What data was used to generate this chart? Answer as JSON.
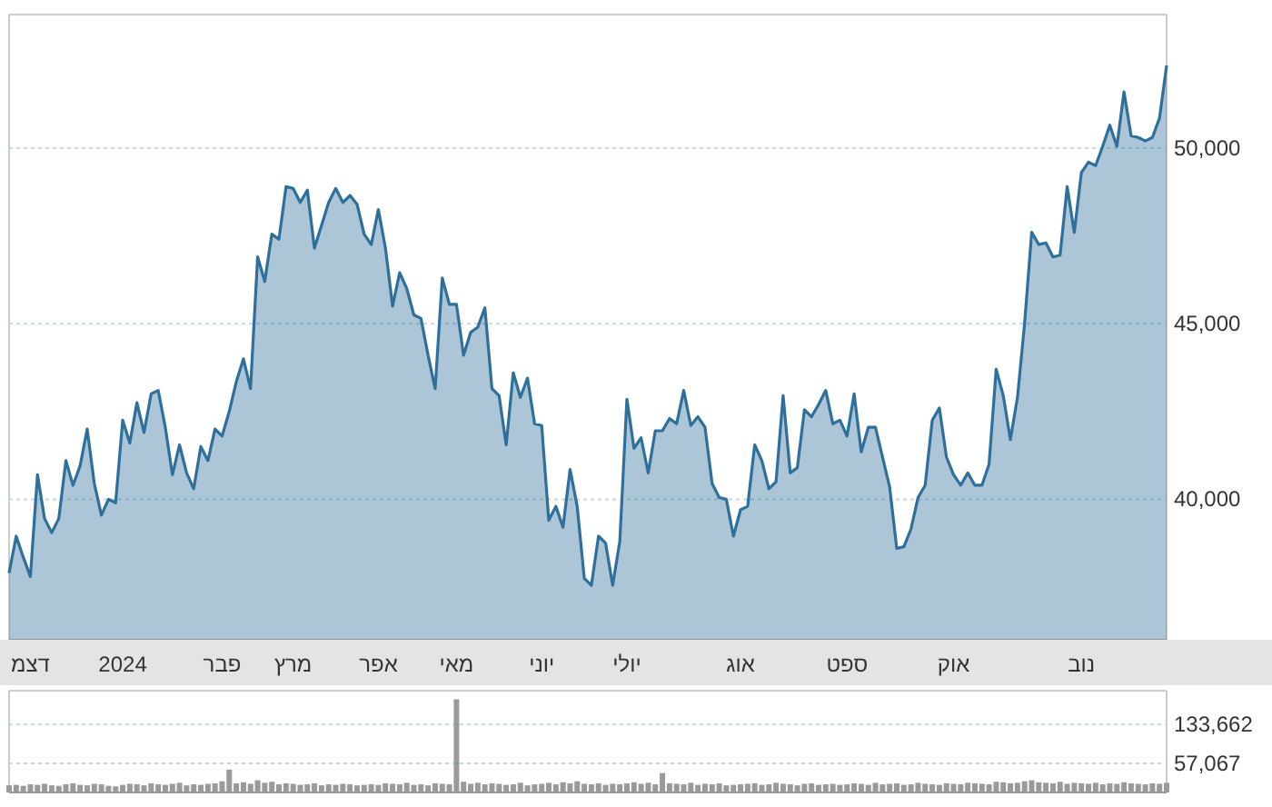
{
  "chart_data": [
    {
      "type": "area",
      "color": "#2f6f9c",
      "categories": [
        null,
        null,
        null,
        "דצמ",
        null,
        null,
        null,
        null,
        null,
        null,
        null,
        null,
        null,
        null,
        null,
        null,
        "2024",
        null,
        null,
        null,
        null,
        null,
        null,
        null,
        null,
        null,
        null,
        null,
        null,
        null,
        "פבר",
        null,
        null,
        null,
        null,
        null,
        null,
        null,
        null,
        null,
        "מרץ",
        null,
        null,
        null,
        null,
        null,
        null,
        null,
        null,
        null,
        null,
        null,
        "אפר",
        null,
        null,
        null,
        null,
        null,
        null,
        null,
        null,
        null,
        null,
        "מאי",
        null,
        null,
        null,
        null,
        null,
        null,
        null,
        null,
        null,
        null,
        null,
        "יוני",
        null,
        null,
        null,
        null,
        null,
        null,
        null,
        null,
        null,
        null,
        null,
        "יולי",
        null,
        null,
        null,
        null,
        null,
        null,
        null,
        null,
        null,
        null,
        null,
        null,
        null,
        null,
        null,
        "אוג",
        null,
        null,
        null,
        null,
        null,
        null,
        null,
        null,
        null,
        null,
        null,
        null,
        null,
        null,
        "ספט",
        null,
        null,
        null,
        null,
        null,
        null,
        null,
        null,
        null,
        null,
        null,
        null,
        null,
        null,
        "אוק",
        null,
        null,
        null,
        null,
        null,
        null,
        null,
        null,
        null,
        null,
        null,
        null,
        null,
        null,
        null,
        null,
        null,
        "נוב",
        null,
        null,
        null,
        null,
        null,
        null,
        null,
        null,
        null,
        null,
        null,
        null
      ],
      "values": [
        37900,
        38950,
        38350,
        37800,
        40700,
        39450,
        39050,
        39450,
        41100,
        40400,
        40950,
        42000,
        40450,
        39550,
        40000,
        39900,
        42250,
        41600,
        42750,
        41900,
        43000,
        43100,
        42050,
        40700,
        41550,
        40750,
        40300,
        41500,
        41100,
        42000,
        41800,
        42500,
        43350,
        44000,
        43150,
        46900,
        46200,
        47550,
        47400,
        48900,
        48850,
        48450,
        48800,
        47150,
        47800,
        48450,
        48850,
        48450,
        48650,
        48400,
        47550,
        47250,
        48250,
        47150,
        45500,
        46450,
        46000,
        45250,
        45150,
        44100,
        43150,
        46300,
        45550,
        45550,
        44100,
        44750,
        44900,
        45450,
        43150,
        42950,
        41550,
        43600,
        42900,
        43450,
        42150,
        42100,
        39400,
        39800,
        39200,
        40850,
        39800,
        37750,
        37550,
        38950,
        38750,
        37550,
        38800,
        42850,
        41450,
        41750,
        40750,
        41950,
        41950,
        42300,
        42150,
        43100,
        42100,
        42350,
        42050,
        40450,
        40050,
        40000,
        38950,
        39700,
        39800,
        41550,
        41100,
        40300,
        40500,
        42950,
        40750,
        40900,
        42550,
        42350,
        42700,
        43100,
        42150,
        42250,
        41800,
        43000,
        41350,
        42050,
        42050,
        41200,
        40350,
        38600,
        38650,
        39150,
        40050,
        40400,
        42250,
        42600,
        41200,
        40700,
        40400,
        40750,
        40400,
        40400,
        41000,
        43700,
        42950,
        41700,
        42900,
        45000,
        47600,
        47250,
        47300,
        46900,
        46950,
        48900,
        47600,
        49300,
        49600,
        49500,
        50050,
        50650,
        50050,
        51600,
        50350,
        50300,
        50200,
        50300,
        50850,
        52350
      ],
      "ylim": [
        36000,
        53800
      ],
      "yticks": [
        {
          "value": 40000,
          "label": "40,000"
        },
        {
          "value": 45000,
          "label": "45,000"
        },
        {
          "value": 50000,
          "label": "50,000"
        }
      ],
      "grid": "y"
    },
    {
      "type": "bar",
      "color": "#9a9a9a",
      "categories": [
        null,
        null,
        null,
        null,
        null,
        null,
        null,
        null,
        null,
        null,
        null,
        null,
        null,
        null,
        null,
        null,
        null,
        null,
        null,
        null,
        null,
        null,
        null,
        null,
        null,
        null,
        null,
        null,
        null,
        null,
        null,
        null,
        null,
        null,
        null,
        null,
        null,
        null,
        null,
        null,
        null,
        null,
        null,
        null,
        null,
        null,
        null,
        null,
        null,
        null,
        null,
        null,
        null,
        null,
        null,
        null,
        null,
        null,
        null,
        null,
        null,
        null,
        null,
        null,
        null,
        null,
        null,
        null,
        null,
        null,
        null,
        null,
        null,
        null,
        null,
        null,
        null,
        null,
        null,
        null,
        null,
        null,
        null,
        null,
        null,
        null,
        null,
        null,
        null,
        null,
        null,
        null,
        null,
        null,
        null,
        null,
        null,
        null,
        null,
        null,
        null,
        null,
        null,
        null,
        null,
        null,
        null,
        null,
        null,
        null,
        null,
        null,
        null,
        null,
        null,
        null,
        null,
        null,
        null,
        null,
        null,
        null,
        null,
        null,
        null,
        null,
        null,
        null,
        null,
        null,
        null,
        null,
        null,
        null,
        null,
        null,
        null,
        null,
        null,
        null,
        null,
        null,
        null,
        null,
        null,
        null,
        null,
        null,
        null,
        null,
        null,
        null,
        null,
        null,
        null,
        null,
        null,
        null,
        null,
        null,
        null,
        null,
        null,
        null
      ],
      "values": [
        14000,
        15000,
        13000,
        16000,
        15000,
        17000,
        14000,
        13000,
        16000,
        18000,
        15000,
        14000,
        17000,
        16000,
        13000,
        12000,
        15000,
        17000,
        16000,
        14000,
        18000,
        16000,
        15000,
        17000,
        19000,
        14000,
        16000,
        15000,
        17000,
        18000,
        22000,
        45000,
        18000,
        20000,
        17000,
        24000,
        19000,
        21000,
        16000,
        18000,
        17000,
        15000,
        16000,
        18000,
        14000,
        16000,
        15000,
        17000,
        16000,
        14000,
        15000,
        16000,
        15000,
        18000,
        17000,
        16000,
        19000,
        15000,
        16000,
        14000,
        18000,
        17000,
        16000,
        183000,
        21000,
        17000,
        19000,
        16000,
        18000,
        17000,
        15000,
        16000,
        19000,
        14000,
        16000,
        17000,
        19000,
        16000,
        20000,
        18000,
        22000,
        17000,
        16000,
        18000,
        15000,
        17000,
        16000,
        18000,
        20000,
        17000,
        19000,
        16000,
        38000,
        18000,
        17000,
        16000,
        19000,
        15000,
        17000,
        16000,
        18000,
        14000,
        15000,
        16000,
        17000,
        18000,
        15000,
        16000,
        19000,
        17000,
        16000,
        14000,
        17000,
        18000,
        15000,
        16000,
        17000,
        15000,
        16000,
        18000,
        17000,
        15000,
        19000,
        16000,
        17000,
        18000,
        15000,
        16000,
        19000,
        17000,
        16000,
        15000,
        18000,
        17000,
        16000,
        19000,
        18000,
        17000,
        16000,
        21000,
        20000,
        18000,
        19000,
        22000,
        24000,
        20000,
        19000,
        18000,
        21000,
        17000,
        19000,
        18000,
        17000,
        19000,
        16000,
        18000,
        17000,
        20000,
        18000,
        17000,
        16000,
        18000,
        17000,
        19000
      ],
      "ylim": [
        0,
        200000
      ],
      "yticks": [
        {
          "value": 57067,
          "label": "57,067"
        },
        {
          "value": 133662,
          "label": "133,662"
        }
      ],
      "grid": "y",
      "tick_labels": "y"
    }
  ]
}
